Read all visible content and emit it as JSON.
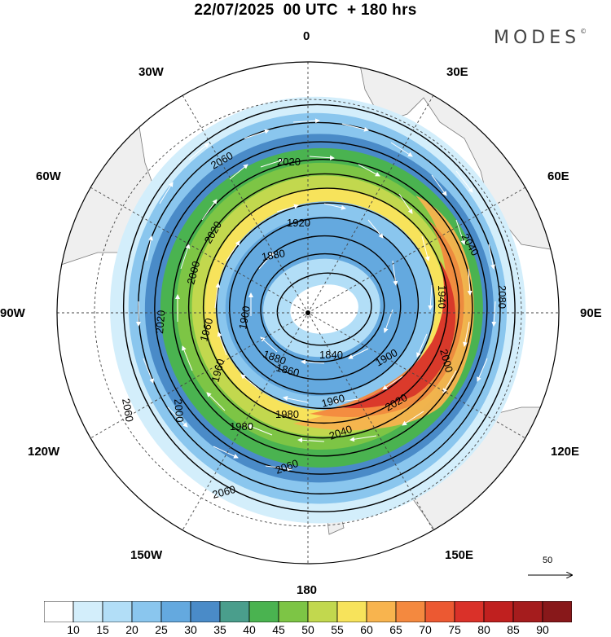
{
  "header": {
    "title": "22/07/2025  00 UTC  + 180 hrs",
    "brand": "MODES",
    "brand_mark": "©"
  },
  "map": {
    "projection": "polar stereographic (south pole)",
    "longitude_labels": {
      "top": "0",
      "upper_right": "30E",
      "right_upper": "60E",
      "right": "90E",
      "right_lower": "120E",
      "lower_right": "150E",
      "bottom": "180",
      "lower_left": "150W",
      "left_lower": "120W",
      "left": "90W",
      "left_upper": "60W",
      "upper_left": "30W"
    },
    "contour_labels": [
      "2060",
      "2020",
      "2020",
      "1920",
      "1880",
      "2000",
      "1960",
      "1900",
      "1880",
      "1860",
      "1840",
      "1940",
      "2040",
      "2080",
      "1900",
      "2000",
      "1960",
      "1980",
      "1980",
      "2020",
      "1960",
      "2040",
      "2060",
      "2060",
      "2000",
      "2020",
      "2060"
    ],
    "vector_reference": {
      "value": "50"
    },
    "colors": {
      "land": "#efefef",
      "coast": "#7a7a7a",
      "grid": "#444444",
      "contour": "#000000",
      "vectors": "#ffffff"
    }
  },
  "colorbar": {
    "ticks": [
      "10",
      "15",
      "20",
      "25",
      "30",
      "35",
      "40",
      "45",
      "50",
      "55",
      "60",
      "65",
      "70",
      "75",
      "80",
      "85",
      "90"
    ],
    "colors": [
      "#ffffff",
      "#d3eefb",
      "#b2def7",
      "#8ac6ee",
      "#64a9df",
      "#4a8bc8",
      "#4a9e8c",
      "#4ab350",
      "#7dc545",
      "#c2d84e",
      "#f7e35b",
      "#f8b44e",
      "#f4893f",
      "#ec5932",
      "#da3129",
      "#c0201f",
      "#a51c1d",
      "#88181a"
    ]
  }
}
